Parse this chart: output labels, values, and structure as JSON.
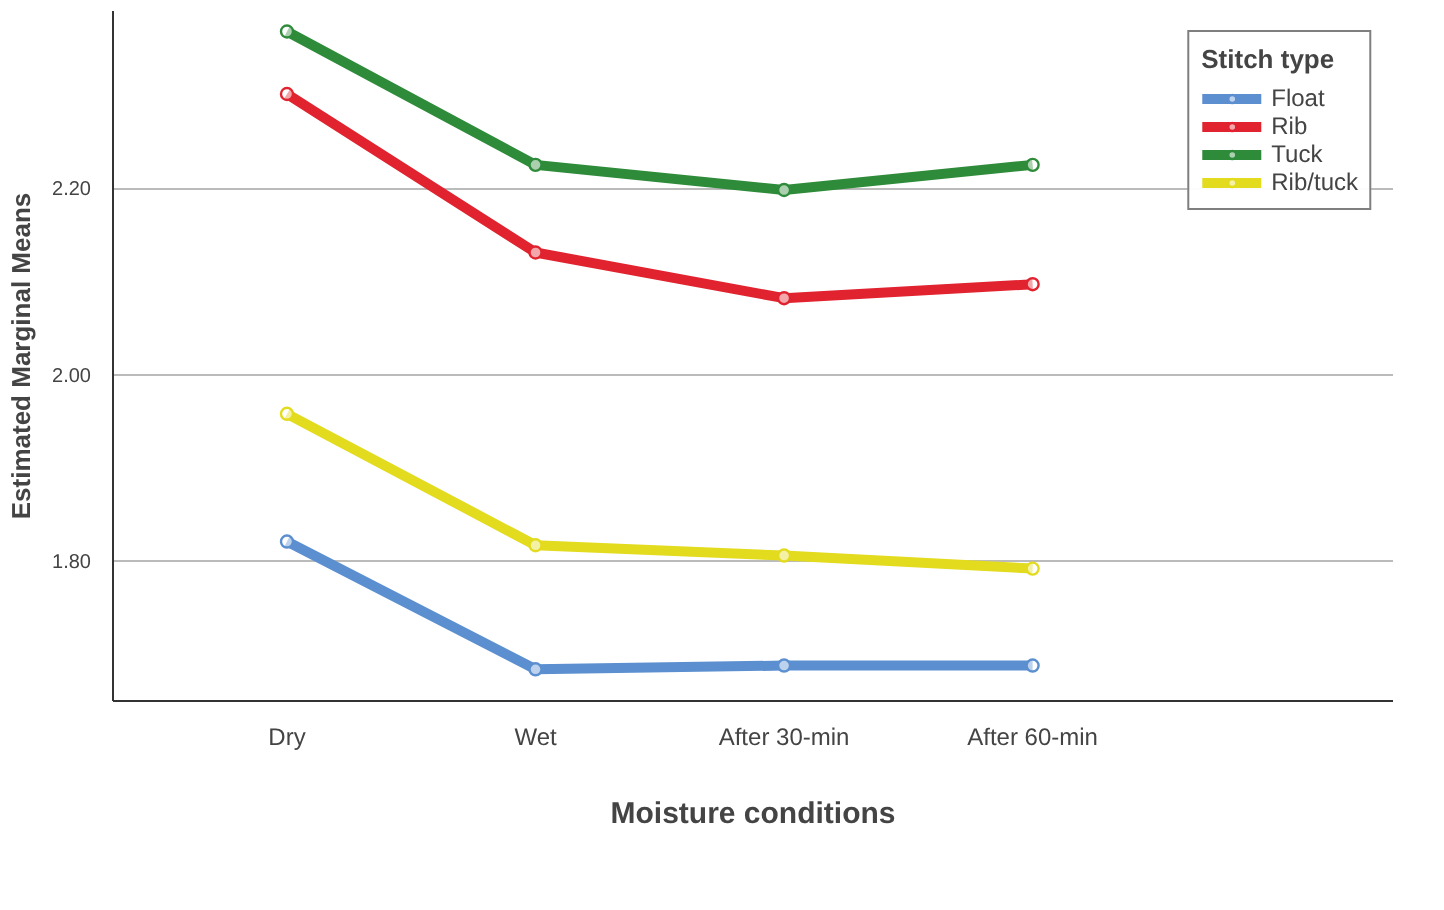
{
  "chart_data": {
    "type": "line",
    "xlabel": "Moisture conditions",
    "ylabel": "Estimated Marginal Means",
    "legend_title": "Stitch type",
    "legend": "top right",
    "grid": "y",
    "marker": "circle",
    "line_style": "solid",
    "categories": [
      "Dry",
      "Wet",
      "After 30-min",
      "After 60-min"
    ],
    "ylim": [
      1.65,
      2.39
    ],
    "yticks": [
      {
        "value": 1.8,
        "label": "1.80"
      },
      {
        "value": 2.0,
        "label": "2.00"
      },
      {
        "value": 2.2,
        "label": "2.20"
      }
    ],
    "series": [
      {
        "name": "Float",
        "color": "#5b8fd0",
        "values": [
          1.821,
          1.684,
          1.688,
          1.688
        ]
      },
      {
        "name": "Rib",
        "color": "#e0232f",
        "values": [
          2.301,
          2.131,
          2.082,
          2.097
        ]
      },
      {
        "name": "Tuck",
        "color": "#2e8b3a",
        "values": [
          2.368,
          2.225,
          2.198,
          2.225
        ]
      },
      {
        "name": "Rib/tuck",
        "color": "#e3db1e",
        "values": [
          1.958,
          1.817,
          1.806,
          1.792
        ]
      }
    ]
  }
}
